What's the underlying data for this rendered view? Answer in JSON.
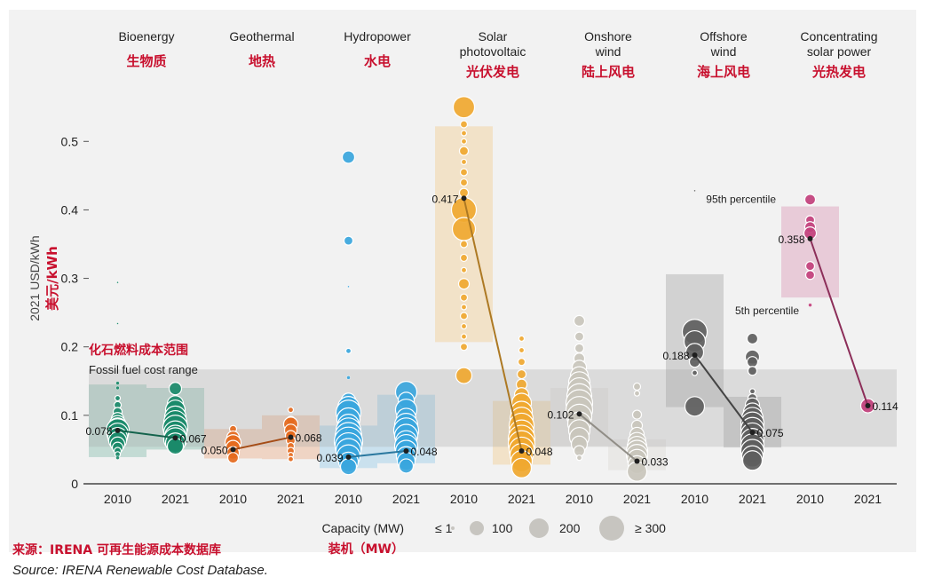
{
  "chart_data": {
    "type": "scatter",
    "y_axis": {
      "label": "2021 USD/kWh",
      "label_cn": "美元/kWh",
      "ylim": [
        0,
        0.56
      ],
      "ticks": [
        0,
        0.1,
        0.2,
        0.3,
        0.4,
        0.5
      ],
      "tick_labels": [
        "0",
        "0.1",
        "0.2",
        "0.3",
        "0.4",
        "0.5"
      ]
    },
    "fossil_range": {
      "low": 0.054,
      "high": 0.167,
      "label_en": "Fossil fuel cost range",
      "label_cn": "化石燃料成本范围"
    },
    "technologies": [
      {
        "name": "Bioenergy",
        "name_cn": "生物质",
        "color": "#1a8a6a",
        "years": [
          {
            "year": "2010",
            "avg": 0.078,
            "avg_label": "0.078",
            "band": [
              0.039,
              0.145
            ],
            "points": [
              [
                0.294,
                1
              ],
              [
                0.234,
                1
              ],
              [
                0.147,
                2
              ],
              [
                0.14,
                2
              ],
              [
                0.125,
                3
              ],
              [
                0.115,
                4
              ],
              [
                0.105,
                5
              ],
              [
                0.095,
                7
              ],
              [
                0.088,
                9
              ],
              [
                0.082,
                11
              ],
              [
                0.078,
                13
              ],
              [
                0.073,
                12
              ],
              [
                0.068,
                11
              ],
              [
                0.063,
                10
              ],
              [
                0.058,
                8
              ],
              [
                0.053,
                6
              ],
              [
                0.048,
                4
              ],
              [
                0.043,
                3
              ],
              [
                0.038,
                2
              ]
            ]
          },
          {
            "year": "2021",
            "avg": 0.067,
            "avg_label": "0.067",
            "band": [
              0.05,
              0.14
            ],
            "points": [
              [
                0.139,
                7
              ],
              [
                0.117,
                9
              ],
              [
                0.108,
                11
              ],
              [
                0.098,
                12
              ],
              [
                0.09,
                13
              ],
              [
                0.082,
                14
              ],
              [
                0.075,
                13
              ],
              [
                0.07,
                12
              ],
              [
                0.065,
                13
              ],
              [
                0.06,
                11
              ],
              [
                0.055,
                9
              ]
            ]
          }
        ]
      },
      {
        "name": "Geothermal",
        "name_cn": "地热",
        "color": "#e56a1e",
        "years": [
          {
            "year": "2010",
            "avg": 0.05,
            "avg_label": "0.050",
            "band": [
              0.037,
              0.08
            ],
            "points": [
              [
                0.08,
                4
              ],
              [
                0.068,
                7
              ],
              [
                0.06,
                9
              ],
              [
                0.053,
                8
              ],
              [
                0.045,
                7
              ],
              [
                0.038,
                6
              ]
            ]
          },
          {
            "year": "2021",
            "avg": 0.068,
            "avg_label": "0.068",
            "band": [
              0.036,
              0.1
            ],
            "points": [
              [
                0.108,
                3
              ],
              [
                0.092,
                5
              ],
              [
                0.087,
                8
              ],
              [
                0.078,
                7
              ],
              [
                0.07,
                6
              ],
              [
                0.063,
                5
              ],
              [
                0.055,
                4
              ],
              [
                0.048,
                4
              ],
              [
                0.042,
                3
              ],
              [
                0.036,
                3
              ]
            ]
          }
        ]
      },
      {
        "name": "Hydropower",
        "name_cn": "水电",
        "color": "#3aa6dd",
        "years": [
          {
            "year": "2010",
            "avg": 0.039,
            "avg_label": "0.039",
            "band": [
              0.023,
              0.085
            ],
            "points": [
              [
                0.477,
                7
              ],
              [
                0.355,
                5
              ],
              [
                0.288,
                1
              ],
              [
                0.194,
                3
              ],
              [
                0.155,
                2
              ],
              [
                0.122,
                8
              ],
              [
                0.112,
                12
              ],
              [
                0.104,
                14
              ],
              [
                0.094,
                13
              ],
              [
                0.086,
                12
              ],
              [
                0.078,
                14
              ],
              [
                0.07,
                15
              ],
              [
                0.062,
                16
              ],
              [
                0.055,
                15
              ],
              [
                0.048,
                14
              ],
              [
                0.04,
                13
              ],
              [
                0.032,
                11
              ],
              [
                0.025,
                9
              ]
            ]
          },
          {
            "year": "2021",
            "avg": 0.048,
            "avg_label": "0.048",
            "band": [
              0.03,
              0.13
            ],
            "points": [
              [
                0.134,
                12
              ],
              [
                0.122,
                9
              ],
              [
                0.108,
                12
              ],
              [
                0.096,
                11
              ],
              [
                0.086,
                13
              ],
              [
                0.078,
                14
              ],
              [
                0.07,
                13
              ],
              [
                0.062,
                12
              ],
              [
                0.055,
                13
              ],
              [
                0.048,
                12
              ],
              [
                0.04,
                11
              ],
              [
                0.033,
                10
              ],
              [
                0.026,
                8
              ]
            ]
          }
        ]
      },
      {
        "name": "Solar photovoltaic",
        "name_cn": "光伏发电",
        "color": "#f0a830",
        "years": [
          {
            "year": "2010",
            "avg": 0.417,
            "avg_label": "0.417",
            "band": [
              0.207,
              0.522
            ],
            "points": [
              [
                0.55,
                12
              ],
              [
                0.525,
                4
              ],
              [
                0.512,
                3
              ],
              [
                0.5,
                3
              ],
              [
                0.486,
                5
              ],
              [
                0.47,
                3
              ],
              [
                0.455,
                4
              ],
              [
                0.44,
                4
              ],
              [
                0.425,
                5
              ],
              [
                0.4,
                14
              ],
              [
                0.372,
                13
              ],
              [
                0.35,
                4
              ],
              [
                0.33,
                4
              ],
              [
                0.312,
                3
              ],
              [
                0.292,
                6
              ],
              [
                0.272,
                4
              ],
              [
                0.258,
                3
              ],
              [
                0.245,
                4
              ],
              [
                0.23,
                3
              ],
              [
                0.215,
                3
              ],
              [
                0.2,
                4
              ],
              [
                0.158,
                9
              ]
            ]
          },
          {
            "year": "2021",
            "avg": 0.048,
            "avg_label": "0.048",
            "band": [
              0.028,
              0.121
            ],
            "points": [
              [
                0.212,
                3
              ],
              [
                0.195,
                3
              ],
              [
                0.178,
                4
              ],
              [
                0.16,
                5
              ],
              [
                0.145,
                6
              ],
              [
                0.13,
                8
              ],
              [
                0.118,
                11
              ],
              [
                0.105,
                12
              ],
              [
                0.095,
                13
              ],
              [
                0.085,
                14
              ],
              [
                0.075,
                14
              ],
              [
                0.066,
                15
              ],
              [
                0.058,
                15
              ],
              [
                0.05,
                14
              ],
              [
                0.042,
                13
              ],
              [
                0.033,
                12
              ],
              [
                0.023,
                11
              ]
            ]
          }
        ]
      },
      {
        "name": "Onshore wind",
        "name_cn": "陆上风电",
        "color": "#c9c5bc",
        "years": [
          {
            "year": "2010",
            "avg": 0.102,
            "avg_label": "0.102",
            "band": [
              0.055,
              0.14
            ],
            "points": [
              [
                0.238,
                6
              ],
              [
                0.215,
                5
              ],
              [
                0.198,
                5
              ],
              [
                0.183,
                6
              ],
              [
                0.17,
                8
              ],
              [
                0.158,
                10
              ],
              [
                0.148,
                12
              ],
              [
                0.138,
                13
              ],
              [
                0.128,
                14
              ],
              [
                0.118,
                15
              ],
              [
                0.108,
                15
              ],
              [
                0.098,
                14
              ],
              [
                0.088,
                13
              ],
              [
                0.078,
                12
              ],
              [
                0.068,
                11
              ],
              [
                0.058,
                9
              ],
              [
                0.048,
                6
              ],
              [
                0.038,
                3
              ]
            ]
          },
          {
            "year": "2021",
            "avg": 0.033,
            "avg_label": "0.033",
            "band": [
              0.02,
              0.065
            ],
            "points": [
              [
                0.142,
                4
              ],
              [
                0.132,
                3
              ],
              [
                0.101,
                5
              ],
              [
                0.085,
                6
              ],
              [
                0.072,
                8
              ],
              [
                0.062,
                10
              ],
              [
                0.055,
                11
              ],
              [
                0.048,
                12
              ],
              [
                0.042,
                12
              ],
              [
                0.036,
                11
              ],
              [
                0.028,
                10
              ],
              [
                0.018,
                11
              ]
            ]
          }
        ]
      },
      {
        "name": "Offshore wind",
        "name_cn": "海上风电",
        "color": "#5e5e5e",
        "years": [
          {
            "year": "2010",
            "avg": 0.188,
            "avg_label": "0.188",
            "band": [
              0.112,
              0.306
            ],
            "points": [
              [
                0.428,
                1
              ],
              [
                0.222,
                14
              ],
              [
                0.208,
                12
              ],
              [
                0.192,
                10
              ],
              [
                0.178,
                6
              ],
              [
                0.162,
                3
              ],
              [
                0.113,
                11
              ]
            ]
          },
          {
            "year": "2021",
            "avg": 0.075,
            "avg_label": "0.075",
            "band": [
              0.053,
              0.127
            ],
            "points": [
              [
                0.212,
                6
              ],
              [
                0.185,
                8
              ],
              [
                0.178,
                6
              ],
              [
                0.165,
                5
              ],
              [
                0.135,
                3
              ],
              [
                0.125,
                5
              ],
              [
                0.115,
                8
              ],
              [
                0.105,
                10
              ],
              [
                0.096,
                12
              ],
              [
                0.088,
                13
              ],
              [
                0.08,
                13
              ],
              [
                0.072,
                13
              ],
              [
                0.064,
                13
              ],
              [
                0.056,
                13
              ],
              [
                0.048,
                13
              ],
              [
                0.04,
                12
              ],
              [
                0.034,
                11
              ]
            ]
          }
        ]
      },
      {
        "name": "Concentrating solar power",
        "name_cn": "光热发电",
        "color": "#c2407c",
        "years": [
          {
            "year": "2010",
            "avg": 0.358,
            "avg_label": "0.358",
            "band": [
              0.272,
              0.405
            ],
            "points": [
              [
                0.415,
                6
              ],
              [
                0.385,
                5
              ],
              [
                0.375,
                6
              ],
              [
                0.366,
                7
              ],
              [
                0.318,
                5
              ],
              [
                0.305,
                5
              ],
              [
                0.261,
                2
              ]
            ]
          },
          {
            "year": "2021",
            "avg": 0.114,
            "avg_label": "0.114",
            "band": null,
            "points": [
              [
                0.114,
                8
              ]
            ]
          }
        ]
      }
    ],
    "percentile_labels": {
      "p95": "95th percentile",
      "p5": "5th percentile"
    },
    "capacity_legend": {
      "title": "Capacity (MW)",
      "title_cn": "装机（MW）",
      "entries": [
        "≤ 1",
        "100",
        "200",
        "≥ 300"
      ]
    }
  },
  "source": {
    "cn": "来源：IRENA 可再生能源成本数据库",
    "en": "Source: IRENA Renewable Cost Database."
  }
}
